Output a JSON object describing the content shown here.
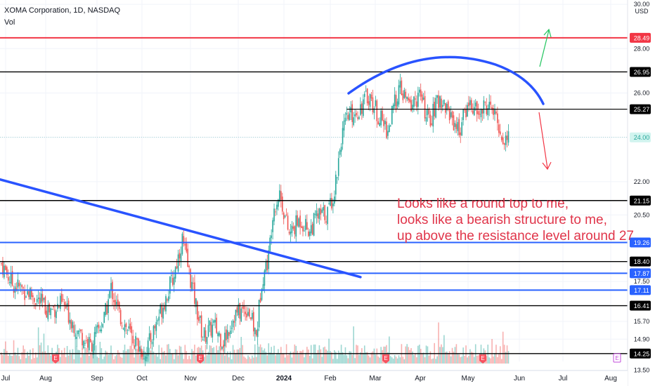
{
  "header": {
    "symbol": "XOMA Corporation, 1D, NASDAQ",
    "indicator": "Vol"
  },
  "annotation": {
    "lines": [
      "Looks like a round top to me,",
      "looks like a bearish structure to me,",
      "up above the resistance level around 27"
    ]
  },
  "chart_data": {
    "type": "candlestick",
    "currency": "USD",
    "price_axis_ticks": [
      30.0,
      28.0,
      26.0,
      24.0,
      22.0,
      20.5,
      19.26,
      17.5,
      15.7,
      14.9,
      13.5
    ],
    "time_axis_labels": [
      "Jul",
      "Aug",
      "Sep",
      "Oct",
      "Nov",
      "Dec",
      "2024",
      "Feb",
      "Mar",
      "Apr",
      "May",
      "Jun",
      "Jul",
      "Aug"
    ],
    "last_price": 24.0,
    "horizontal_levels": [
      {
        "price": 28.49,
        "label": "28.49",
        "color": "#f23645"
      },
      {
        "price": 26.95,
        "label": "26.95",
        "color": "#000000"
      },
      {
        "price": 25.27,
        "label": "25.27",
        "color": "#000000"
      },
      {
        "price": 21.15,
        "label": "21.15",
        "color": "#000000"
      },
      {
        "price": 19.26,
        "label": "19.26",
        "color": "#2962ff"
      },
      {
        "price": 18.4,
        "label": "18.40",
        "color": "#000000"
      },
      {
        "price": 17.87,
        "label": "17.87",
        "color": "#2962ff"
      },
      {
        "price": 17.11,
        "label": "17.11",
        "color": "#2962ff"
      },
      {
        "price": 16.41,
        "label": "16.41",
        "color": "#000000"
      },
      {
        "price": 14.25,
        "label": "14.25",
        "color": "#000000"
      }
    ],
    "price_path": [
      {
        "d": 0,
        "p": 18.3
      },
      {
        "d": 8,
        "p": 17.4
      },
      {
        "d": 20,
        "p": 17.0
      },
      {
        "d": 35,
        "p": 16.2
      },
      {
        "d": 45,
        "p": 16.5
      },
      {
        "d": 55,
        "p": 15.3
      },
      {
        "d": 65,
        "p": 14.6
      },
      {
        "d": 75,
        "p": 15.8
      },
      {
        "d": 80,
        "p": 17.2
      },
      {
        "d": 86,
        "p": 16.0
      },
      {
        "d": 95,
        "p": 15.0
      },
      {
        "d": 105,
        "p": 14.2
      },
      {
        "d": 115,
        "p": 16.0
      },
      {
        "d": 125,
        "p": 17.6
      },
      {
        "d": 132,
        "p": 19.4
      },
      {
        "d": 140,
        "p": 17.0
      },
      {
        "d": 147,
        "p": 15.0
      },
      {
        "d": 155,
        "p": 15.5
      },
      {
        "d": 162,
        "p": 14.8
      },
      {
        "d": 170,
        "p": 16.0
      },
      {
        "d": 180,
        "p": 16.3
      },
      {
        "d": 186,
        "p": 15.0
      },
      {
        "d": 190,
        "p": 17.6
      },
      {
        "d": 195,
        "p": 18.6
      },
      {
        "d": 198,
        "p": 20.7
      },
      {
        "d": 203,
        "p": 21.5
      },
      {
        "d": 210,
        "p": 19.6
      },
      {
        "d": 218,
        "p": 20.3
      },
      {
        "d": 225,
        "p": 19.8
      },
      {
        "d": 230,
        "p": 20.4
      },
      {
        "d": 238,
        "p": 20.6
      },
      {
        "d": 243,
        "p": 21.6
      },
      {
        "d": 248,
        "p": 24.0
      },
      {
        "d": 253,
        "p": 24.9
      },
      {
        "d": 260,
        "p": 25.2
      },
      {
        "d": 268,
        "p": 25.9
      },
      {
        "d": 275,
        "p": 25.0
      },
      {
        "d": 282,
        "p": 24.3
      },
      {
        "d": 290,
        "p": 26.2
      },
      {
        "d": 298,
        "p": 25.4
      },
      {
        "d": 305,
        "p": 25.9
      },
      {
        "d": 312,
        "p": 24.7
      },
      {
        "d": 320,
        "p": 25.8
      },
      {
        "d": 327,
        "p": 25.1
      },
      {
        "d": 334,
        "p": 24.3
      },
      {
        "d": 341,
        "p": 25.6
      },
      {
        "d": 348,
        "p": 25.0
      },
      {
        "d": 355,
        "p": 25.5
      },
      {
        "d": 362,
        "p": 24.7
      },
      {
        "d": 366,
        "p": 23.8
      },
      {
        "d": 370,
        "p": 24.0
      }
    ]
  }
}
